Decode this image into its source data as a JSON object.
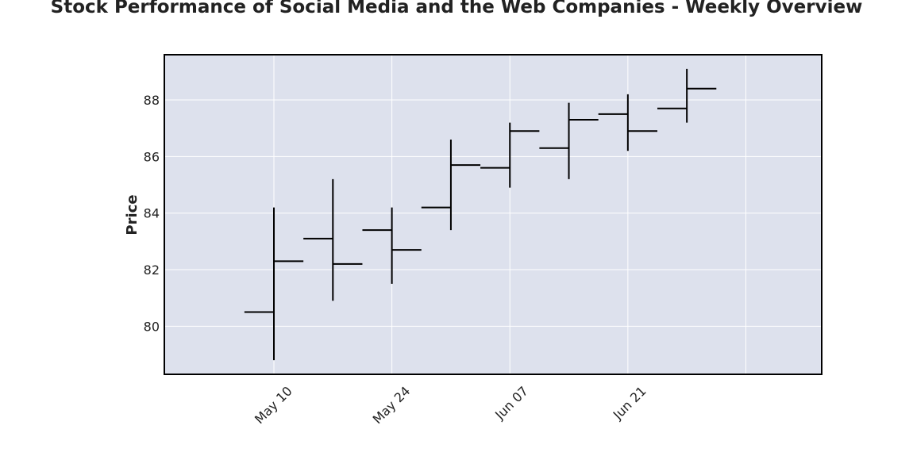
{
  "chart_data": {
    "type": "ohlc",
    "title": "Stock Performance of Social Media and the Web Companies - Weekly Overview",
    "xlabel": "",
    "ylabel": "Price",
    "x_tick_labels": [
      "May 10",
      "May 24",
      "Jun 07",
      "Jun 21"
    ],
    "y_ticks": [
      80,
      82,
      84,
      86,
      88
    ],
    "ylim": [
      78.3,
      89.6
    ],
    "xlim": [
      "2024-04-27",
      "2024-07-14"
    ],
    "grid": true,
    "colors": {
      "plot_background": "#dde1ed",
      "grid": "#ffffff",
      "bars": "#000000",
      "frame": "#000000"
    },
    "series": [
      {
        "date": "2024-05-10",
        "open": 80.5,
        "high": 84.2,
        "low": 78.8,
        "close": 82.3
      },
      {
        "date": "2024-05-17",
        "open": 83.1,
        "high": 85.2,
        "low": 80.9,
        "close": 82.2
      },
      {
        "date": "2024-05-24",
        "open": 83.4,
        "high": 84.2,
        "low": 81.5,
        "close": 82.7
      },
      {
        "date": "2024-05-31",
        "open": 84.2,
        "high": 86.6,
        "low": 83.4,
        "close": 85.7
      },
      {
        "date": "2024-06-07",
        "open": 85.6,
        "high": 87.2,
        "low": 84.9,
        "close": 86.9
      },
      {
        "date": "2024-06-14",
        "open": 86.3,
        "high": 87.9,
        "low": 85.2,
        "close": 87.3
      },
      {
        "date": "2024-06-21",
        "open": 87.5,
        "high": 88.2,
        "low": 86.2,
        "close": 86.9
      },
      {
        "date": "2024-06-28",
        "open": 87.7,
        "high": 89.1,
        "low": 87.2,
        "close": 88.4
      }
    ]
  }
}
